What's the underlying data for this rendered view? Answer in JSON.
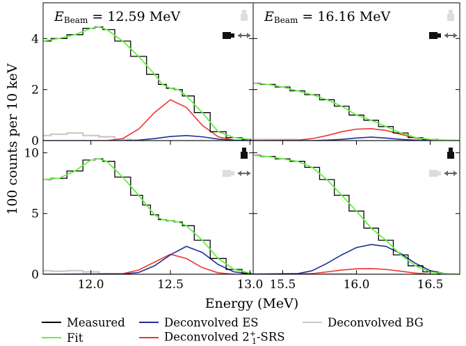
{
  "chart_data": {
    "type": "line",
    "ylabel": "100 counts per 10 keV",
    "xlabel": "Energy (MeV)",
    "beam_label": "E",
    "beam_subscript": "Beam",
    "panels": [
      {
        "id": "top-left",
        "beam_energy": "= 12.59 MeV",
        "beam_unit": "",
        "xlim": [
          11.7,
          13.02
        ],
        "ylim": [
          0,
          5.4
        ],
        "xticks": [],
        "yticks": [
          0,
          2,
          4
        ],
        "series": {
          "measured": [
            [
              11.7,
              3.9
            ],
            [
              11.8,
              4.0
            ],
            [
              11.9,
              4.15
            ],
            [
              12.0,
              4.4
            ],
            [
              12.05,
              4.45
            ],
            [
              12.1,
              4.35
            ],
            [
              12.2,
              3.9
            ],
            [
              12.3,
              3.3
            ],
            [
              12.4,
              2.6
            ],
            [
              12.45,
              2.2
            ],
            [
              12.5,
              2.05
            ],
            [
              12.55,
              2.0
            ],
            [
              12.6,
              1.75
            ],
            [
              12.7,
              1.1
            ],
            [
              12.8,
              0.35
            ],
            [
              12.9,
              0.12
            ],
            [
              13.0,
              0.05
            ]
          ],
          "fit": [
            [
              11.7,
              3.9
            ],
            [
              11.8,
              4.0
            ],
            [
              11.9,
              4.15
            ],
            [
              12.0,
              4.4
            ],
            [
              12.05,
              4.45
            ],
            [
              12.1,
              4.35
            ],
            [
              12.2,
              3.9
            ],
            [
              12.3,
              3.3
            ],
            [
              12.4,
              2.6
            ],
            [
              12.45,
              2.2
            ],
            [
              12.5,
              2.05
            ],
            [
              12.55,
              2.0
            ],
            [
              12.6,
              1.75
            ],
            [
              12.7,
              1.1
            ],
            [
              12.8,
              0.35
            ],
            [
              12.9,
              0.12
            ],
            [
              13.0,
              0.05
            ]
          ],
          "es": [
            [
              11.7,
              0
            ],
            [
              12.2,
              0
            ],
            [
              12.3,
              0.02
            ],
            [
              12.4,
              0.08
            ],
            [
              12.5,
              0.16
            ],
            [
              12.6,
              0.2
            ],
            [
              12.7,
              0.15
            ],
            [
              12.8,
              0.06
            ],
            [
              12.9,
              0.01
            ],
            [
              13.02,
              0
            ]
          ],
          "srs": [
            [
              11.7,
              0
            ],
            [
              12.1,
              0
            ],
            [
              12.2,
              0.08
            ],
            [
              12.3,
              0.45
            ],
            [
              12.4,
              1.1
            ],
            [
              12.5,
              1.6
            ],
            [
              12.6,
              1.3
            ],
            [
              12.7,
              0.6
            ],
            [
              12.8,
              0.15
            ],
            [
              12.9,
              0.02
            ],
            [
              13.02,
              0
            ]
          ],
          "bg": [
            [
              11.7,
              0.2
            ],
            [
              11.8,
              0.25
            ],
            [
              11.9,
              0.3
            ],
            [
              12.0,
              0.2
            ],
            [
              12.1,
              0.15
            ],
            [
              12.2,
              0.05
            ],
            [
              12.3,
              0.0
            ],
            [
              13.02,
              0
            ]
          ]
        }
      },
      {
        "id": "top-right",
        "beam_energy": "= 16.16 MeV",
        "beam_unit": "",
        "xlim": [
          15.3,
          16.7
        ],
        "ylim": [
          0,
          5.4
        ],
        "xticks": [],
        "yticks": [
          0,
          2,
          4
        ],
        "series": {
          "measured": [
            [
              15.3,
              2.25
            ],
            [
              15.4,
              2.2
            ],
            [
              15.5,
              2.1
            ],
            [
              15.6,
              1.95
            ],
            [
              15.7,
              1.8
            ],
            [
              15.8,
              1.6
            ],
            [
              15.9,
              1.35
            ],
            [
              16.0,
              1.0
            ],
            [
              16.1,
              0.8
            ],
            [
              16.2,
              0.55
            ],
            [
              16.3,
              0.3
            ],
            [
              16.4,
              0.12
            ],
            [
              16.5,
              0.05
            ],
            [
              16.6,
              0.02
            ],
            [
              16.7,
              0.01
            ]
          ],
          "fit": [
            [
              15.3,
              2.25
            ],
            [
              15.4,
              2.2
            ],
            [
              15.5,
              2.1
            ],
            [
              15.6,
              1.95
            ],
            [
              15.7,
              1.8
            ],
            [
              15.8,
              1.6
            ],
            [
              15.9,
              1.35
            ],
            [
              16.0,
              1.0
            ],
            [
              16.1,
              0.8
            ],
            [
              16.2,
              0.55
            ],
            [
              16.3,
              0.3
            ],
            [
              16.4,
              0.12
            ],
            [
              16.5,
              0.05
            ],
            [
              16.6,
              0.02
            ],
            [
              16.7,
              0.01
            ]
          ],
          "es": [
            [
              15.3,
              0
            ],
            [
              15.7,
              0
            ],
            [
              15.8,
              0.02
            ],
            [
              15.9,
              0.05
            ],
            [
              16.0,
              0.1
            ],
            [
              16.1,
              0.14
            ],
            [
              16.2,
              0.1
            ],
            [
              16.3,
              0.05
            ],
            [
              16.4,
              0.02
            ],
            [
              16.5,
              0.0
            ],
            [
              16.7,
              0
            ]
          ],
          "srs": [
            [
              15.3,
              0
            ],
            [
              15.6,
              0.02
            ],
            [
              15.7,
              0.08
            ],
            [
              15.8,
              0.2
            ],
            [
              15.9,
              0.35
            ],
            [
              16.0,
              0.45
            ],
            [
              16.1,
              0.47
            ],
            [
              16.2,
              0.4
            ],
            [
              16.3,
              0.25
            ],
            [
              16.4,
              0.1
            ],
            [
              16.5,
              0.03
            ],
            [
              16.7,
              0
            ]
          ],
          "bg": [
            [
              15.3,
              0.05
            ],
            [
              15.5,
              0.05
            ],
            [
              15.7,
              0.0
            ],
            [
              16.7,
              0
            ]
          ]
        }
      },
      {
        "id": "bottom-left",
        "beam_energy": "",
        "beam_unit": "",
        "xlim": [
          11.7,
          13.02
        ],
        "ylim": [
          0,
          11.0
        ],
        "xticks": [
          12.0,
          12.5,
          13.0
        ],
        "xticklabels": [
          "12.0",
          "12.5",
          "13.0"
        ],
        "yticks": [
          0,
          5,
          10
        ],
        "series": {
          "measured": [
            [
              11.7,
              7.8
            ],
            [
              11.8,
              7.9
            ],
            [
              11.9,
              8.5
            ],
            [
              12.0,
              9.4
            ],
            [
              12.05,
              9.5
            ],
            [
              12.1,
              9.3
            ],
            [
              12.2,
              8.0
            ],
            [
              12.3,
              6.5
            ],
            [
              12.35,
              5.7
            ],
            [
              12.4,
              4.9
            ],
            [
              12.45,
              4.5
            ],
            [
              12.5,
              4.4
            ],
            [
              12.55,
              4.3
            ],
            [
              12.6,
              4.0
            ],
            [
              12.7,
              2.8
            ],
            [
              12.8,
              1.3
            ],
            [
              12.9,
              0.4
            ],
            [
              13.0,
              0.1
            ]
          ],
          "fit": [
            [
              11.7,
              7.8
            ],
            [
              11.8,
              7.9
            ],
            [
              11.9,
              8.5
            ],
            [
              12.0,
              9.4
            ],
            [
              12.05,
              9.5
            ],
            [
              12.1,
              9.3
            ],
            [
              12.2,
              8.0
            ],
            [
              12.3,
              6.5
            ],
            [
              12.35,
              5.7
            ],
            [
              12.4,
              4.9
            ],
            [
              12.45,
              4.5
            ],
            [
              12.5,
              4.4
            ],
            [
              12.55,
              4.3
            ],
            [
              12.6,
              4.0
            ],
            [
              12.7,
              2.8
            ],
            [
              12.8,
              1.3
            ],
            [
              12.9,
              0.4
            ],
            [
              13.0,
              0.1
            ]
          ],
          "es": [
            [
              11.7,
              0
            ],
            [
              12.2,
              0.02
            ],
            [
              12.3,
              0.15
            ],
            [
              12.4,
              0.7
            ],
            [
              12.5,
              1.6
            ],
            [
              12.6,
              2.3
            ],
            [
              12.7,
              1.8
            ],
            [
              12.8,
              0.8
            ],
            [
              12.9,
              0.2
            ],
            [
              13.02,
              0
            ]
          ],
          "srs": [
            [
              11.7,
              0
            ],
            [
              12.2,
              0.05
            ],
            [
              12.3,
              0.35
            ],
            [
              12.4,
              1.0
            ],
            [
              12.5,
              1.65
            ],
            [
              12.6,
              1.3
            ],
            [
              12.7,
              0.55
            ],
            [
              12.8,
              0.12
            ],
            [
              12.9,
              0.01
            ],
            [
              13.02,
              0
            ]
          ],
          "bg": [
            [
              11.7,
              0.3
            ],
            [
              11.8,
              0.25
            ],
            [
              11.9,
              0.3
            ],
            [
              12.0,
              0.2
            ],
            [
              12.1,
              0.05
            ],
            [
              12.2,
              0.0
            ],
            [
              13.02,
              0
            ]
          ]
        }
      },
      {
        "id": "bottom-right",
        "beam_energy": "",
        "beam_unit": "",
        "xlim": [
          15.3,
          16.7
        ],
        "ylim": [
          0,
          11.0
        ],
        "xticks": [
          15.5,
          16.0,
          16.5
        ],
        "xticklabels": [
          "15.5",
          "16.0",
          "16.5"
        ],
        "yticks": [
          0,
          5,
          10
        ],
        "series": {
          "measured": [
            [
              15.3,
              9.8
            ],
            [
              15.4,
              9.7
            ],
            [
              15.5,
              9.5
            ],
            [
              15.6,
              9.3
            ],
            [
              15.7,
              8.8
            ],
            [
              15.8,
              7.8
            ],
            [
              15.9,
              6.5
            ],
            [
              16.0,
              5.2
            ],
            [
              16.1,
              3.8
            ],
            [
              16.2,
              2.8
            ],
            [
              16.3,
              1.6
            ],
            [
              16.4,
              0.7
            ],
            [
              16.5,
              0.2
            ],
            [
              16.6,
              0.05
            ],
            [
              16.7,
              0.02
            ]
          ],
          "fit": [
            [
              15.3,
              9.8
            ],
            [
              15.4,
              9.7
            ],
            [
              15.5,
              9.5
            ],
            [
              15.6,
              9.3
            ],
            [
              15.7,
              8.8
            ],
            [
              15.8,
              7.8
            ],
            [
              15.9,
              6.5
            ],
            [
              16.0,
              5.2
            ],
            [
              16.1,
              3.8
            ],
            [
              16.2,
              2.8
            ],
            [
              16.3,
              1.6
            ],
            [
              16.4,
              0.7
            ],
            [
              16.5,
              0.2
            ],
            [
              16.6,
              0.05
            ],
            [
              16.7,
              0.02
            ]
          ],
          "es": [
            [
              15.3,
              0
            ],
            [
              15.6,
              0.05
            ],
            [
              15.7,
              0.3
            ],
            [
              15.8,
              0.9
            ],
            [
              15.9,
              1.6
            ],
            [
              16.0,
              2.2
            ],
            [
              16.1,
              2.45
            ],
            [
              16.2,
              2.3
            ],
            [
              16.3,
              1.7
            ],
            [
              16.4,
              0.9
            ],
            [
              16.5,
              0.3
            ],
            [
              16.6,
              0.05
            ],
            [
              16.7,
              0
            ]
          ],
          "srs": [
            [
              15.3,
              0
            ],
            [
              15.7,
              0.05
            ],
            [
              15.8,
              0.2
            ],
            [
              15.9,
              0.35
            ],
            [
              16.0,
              0.45
            ],
            [
              16.1,
              0.47
            ],
            [
              16.2,
              0.4
            ],
            [
              16.3,
              0.25
            ],
            [
              16.4,
              0.1
            ],
            [
              16.5,
              0.02
            ],
            [
              16.7,
              0
            ]
          ],
          "bg": [
            [
              15.3,
              0.05
            ],
            [
              16.7,
              0
            ]
          ]
        }
      }
    ],
    "legend": [
      {
        "key": "measured",
        "label": "Measured",
        "color": "#000000"
      },
      {
        "key": "es",
        "label": "Deconvolved ES",
        "color": "#1f2f96"
      },
      {
        "key": "bg",
        "label": "Deconvolved BG",
        "color": "#c8c8c8"
      },
      {
        "key": "fit",
        "label": "Fit",
        "color": "#66ee44"
      },
      {
        "key": "srs",
        "label_main": "Deconvolved 2",
        "label_sup": "+",
        "label_sub": "1",
        "label_tail": "-SRS",
        "color": "#ee3333"
      }
    ],
    "icon_colors": {
      "active": "#111111",
      "inactive": "#dddddd",
      "arrow": "#666666"
    }
  }
}
